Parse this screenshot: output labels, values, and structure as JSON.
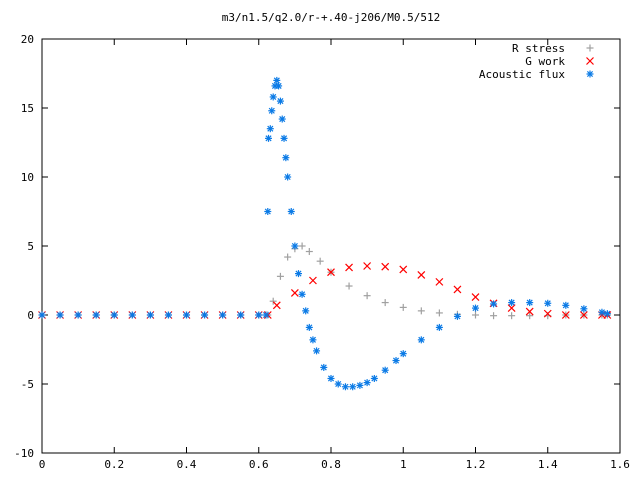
{
  "chart_data": {
    "type": "scatter",
    "title": "m3/n1.5/q2.0/r-+.40-j206/M0.5/512",
    "xlabel": "",
    "ylabel": "",
    "xlim": [
      0,
      1.6
    ],
    "ylim": [
      -10,
      20
    ],
    "x_ticks": [
      0,
      0.2,
      0.4,
      0.6,
      0.8,
      1,
      1.2,
      1.4,
      1.6
    ],
    "x_tick_labels": [
      "0",
      "0.2",
      "0.4",
      "0.6",
      "0.8",
      "1",
      "1.2",
      "1.4",
      "1.6"
    ],
    "y_ticks": [
      -10,
      -5,
      0,
      5,
      10,
      15,
      20
    ],
    "y_tick_labels": [
      "-10",
      "-5",
      "0",
      "5",
      "10",
      "15",
      "20"
    ],
    "grid": false,
    "legend": "top-right",
    "series": [
      {
        "name": "R stress",
        "marker": "plus",
        "color": "#a0a0a0",
        "x": [
          0,
          0.05,
          0.1,
          0.15,
          0.2,
          0.25,
          0.3,
          0.35,
          0.4,
          0.45,
          0.5,
          0.55,
          0.6,
          0.625,
          0.64,
          0.66,
          0.68,
          0.7,
          0.72,
          0.74,
          0.77,
          0.8,
          0.85,
          0.9,
          0.95,
          1.0,
          1.05,
          1.1,
          1.15,
          1.2,
          1.25,
          1.3,
          1.35,
          1.4,
          1.45,
          1.5,
          1.55,
          1.565
        ],
        "y": [
          0,
          0,
          0,
          0,
          0,
          0,
          0,
          0,
          0,
          0,
          0,
          0,
          0,
          0,
          1.0,
          2.8,
          4.2,
          4.8,
          5.0,
          4.6,
          3.9,
          3.1,
          2.1,
          1.4,
          0.9,
          0.55,
          0.3,
          0.15,
          0.05,
          0.0,
          -0.05,
          -0.05,
          -0.05,
          -0.05,
          0.0,
          0.0,
          0.0,
          0.0
        ]
      },
      {
        "name": "G work",
        "marker": "cross",
        "color": "#ff0000",
        "x": [
          0,
          0.05,
          0.1,
          0.15,
          0.2,
          0.25,
          0.3,
          0.35,
          0.4,
          0.45,
          0.5,
          0.55,
          0.6,
          0.625,
          0.65,
          0.7,
          0.75,
          0.8,
          0.85,
          0.9,
          0.95,
          1.0,
          1.05,
          1.1,
          1.15,
          1.2,
          1.25,
          1.3,
          1.35,
          1.4,
          1.45,
          1.5,
          1.55,
          1.565
        ],
        "y": [
          0,
          0,
          0,
          0,
          0,
          0,
          0,
          0,
          0,
          0,
          0,
          0,
          0,
          0,
          0.7,
          1.6,
          2.5,
          3.1,
          3.45,
          3.55,
          3.5,
          3.3,
          2.9,
          2.4,
          1.85,
          1.3,
          0.85,
          0.5,
          0.25,
          0.1,
          0.0,
          0.0,
          0.0,
          0.0
        ]
      },
      {
        "name": "Acoustic flux",
        "marker": "star",
        "color": "#0a7ae6",
        "x": [
          0,
          0.05,
          0.1,
          0.15,
          0.2,
          0.25,
          0.3,
          0.35,
          0.4,
          0.45,
          0.5,
          0.55,
          0.6,
          0.62,
          0.625,
          0.627,
          0.632,
          0.636,
          0.64,
          0.645,
          0.65,
          0.655,
          0.66,
          0.665,
          0.67,
          0.675,
          0.68,
          0.69,
          0.7,
          0.71,
          0.72,
          0.73,
          0.74,
          0.75,
          0.76,
          0.78,
          0.8,
          0.82,
          0.84,
          0.86,
          0.88,
          0.9,
          0.92,
          0.95,
          0.98,
          1.0,
          1.05,
          1.1,
          1.15,
          1.2,
          1.25,
          1.3,
          1.35,
          1.4,
          1.45,
          1.5,
          1.55,
          1.565
        ],
        "y": [
          0,
          0,
          0,
          0,
          0,
          0,
          0,
          0,
          0,
          0,
          0,
          0,
          0,
          0,
          7.5,
          12.8,
          13.5,
          14.8,
          15.8,
          16.6,
          17.0,
          16.6,
          15.5,
          14.2,
          12.8,
          11.4,
          10.0,
          7.5,
          5.0,
          3.0,
          1.5,
          0.3,
          -0.9,
          -1.8,
          -2.6,
          -3.8,
          -4.6,
          -5.0,
          -5.2,
          -5.2,
          -5.1,
          -4.9,
          -4.6,
          -4.0,
          -3.3,
          -2.8,
          -1.8,
          -0.9,
          -0.1,
          0.5,
          0.8,
          0.9,
          0.9,
          0.85,
          0.7,
          0.45,
          0.2,
          0.1
        ]
      }
    ]
  }
}
